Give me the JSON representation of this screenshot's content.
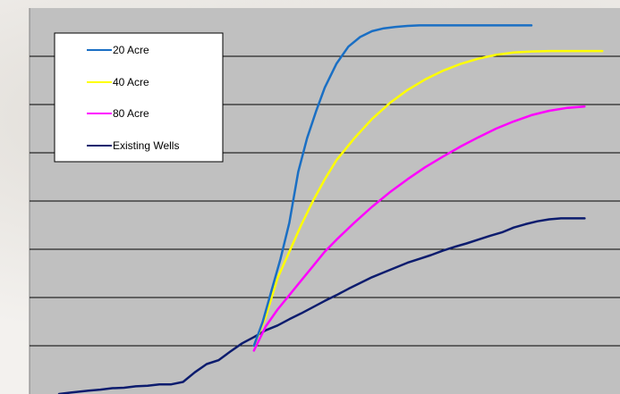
{
  "chart_data": {
    "type": "line",
    "title": "",
    "xlabel": "",
    "ylabel": "",
    "xlim": [
      0,
      100
    ],
    "ylim": [
      0,
      8
    ],
    "grid": true,
    "legend_position": "top-left",
    "series": [
      {
        "name": "20 Acre",
        "color": "#1a6fc4",
        "x": [
          38,
          39.5,
          41,
          42.5,
          44,
          45.5,
          47,
          48.5,
          50,
          52,
          54,
          56,
          58,
          60,
          62,
          64,
          66,
          68,
          70,
          75,
          80,
          85
        ],
        "y": [
          1.0,
          1.5,
          2.15,
          2.8,
          3.55,
          4.6,
          5.3,
          5.85,
          6.35,
          6.85,
          7.2,
          7.4,
          7.52,
          7.58,
          7.61,
          7.63,
          7.64,
          7.64,
          7.64,
          7.64,
          7.64,
          7.64
        ]
      },
      {
        "name": "40 Acre",
        "color": "#ffff00",
        "x": [
          38,
          40,
          42,
          44,
          46,
          48,
          50,
          52,
          55,
          58,
          61,
          64,
          67,
          70,
          73,
          76,
          79,
          82,
          85,
          88,
          91,
          94,
          97
        ],
        "y": [
          1.0,
          1.6,
          2.4,
          2.95,
          3.5,
          4.0,
          4.45,
          4.85,
          5.3,
          5.7,
          6.03,
          6.3,
          6.52,
          6.7,
          6.84,
          6.95,
          7.03,
          7.08,
          7.1,
          7.11,
          7.11,
          7.11,
          7.11
        ]
      },
      {
        "name": "80 Acre",
        "color": "#ff00ff",
        "x": [
          38,
          40,
          42,
          44,
          46,
          48,
          50,
          52,
          55,
          58,
          61,
          64,
          67,
          70,
          73,
          76,
          79,
          82,
          85,
          88,
          91,
          94
        ],
        "y": [
          0.9,
          1.4,
          1.75,
          2.05,
          2.35,
          2.65,
          2.95,
          3.2,
          3.55,
          3.88,
          4.18,
          4.45,
          4.7,
          4.92,
          5.13,
          5.32,
          5.5,
          5.65,
          5.78,
          5.87,
          5.93,
          5.96
        ]
      },
      {
        "name": "Existing Wells",
        "color": "#0c1c6e",
        "x": [
          5,
          7,
          10,
          12,
          14,
          16,
          18,
          20,
          22,
          24,
          26,
          28,
          30,
          32,
          34,
          36,
          38,
          40,
          42,
          44,
          46,
          48,
          50,
          52,
          54,
          56,
          58,
          60,
          62,
          64,
          66,
          68,
          70,
          72,
          74,
          76,
          78,
          80,
          82,
          84,
          86,
          88,
          90,
          92,
          94
        ],
        "y": [
          0.0,
          0.03,
          0.07,
          0.09,
          0.12,
          0.13,
          0.16,
          0.17,
          0.2,
          0.2,
          0.25,
          0.45,
          0.62,
          0.7,
          0.88,
          1.05,
          1.18,
          1.32,
          1.42,
          1.55,
          1.67,
          1.8,
          1.93,
          2.05,
          2.18,
          2.3,
          2.42,
          2.52,
          2.62,
          2.72,
          2.8,
          2.88,
          2.97,
          3.05,
          3.12,
          3.2,
          3.28,
          3.35,
          3.45,
          3.52,
          3.58,
          3.62,
          3.64,
          3.64,
          3.64
        ]
      }
    ]
  }
}
